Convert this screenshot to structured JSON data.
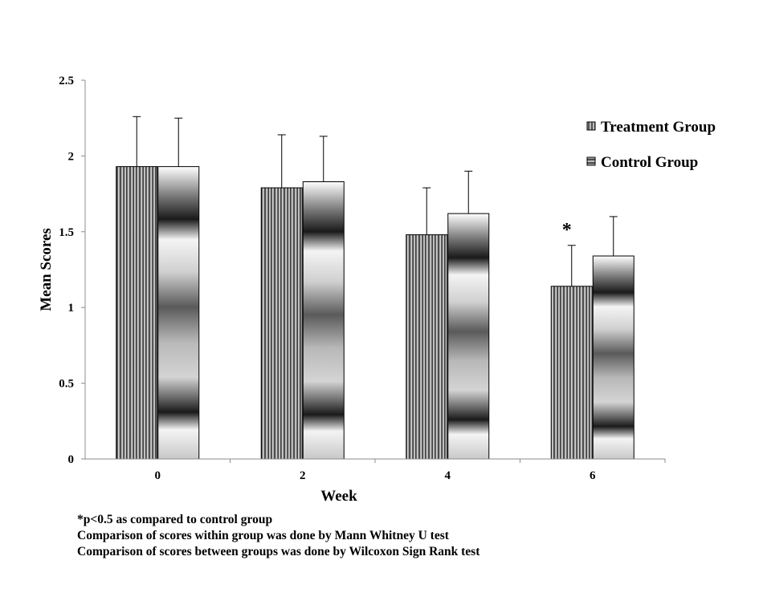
{
  "chart_data": {
    "type": "bar",
    "title": "",
    "xlabel": "Week",
    "ylabel": "Mean Scores",
    "categories": [
      "0",
      "2",
      "4",
      "6"
    ],
    "ylim": [
      0,
      2.5
    ],
    "yticks": [
      "0",
      "0.5",
      "1",
      "1.5",
      "2",
      "2.5"
    ],
    "series": [
      {
        "name": "Treatment Group",
        "values": [
          1.93,
          1.79,
          1.48,
          1.14
        ],
        "error": [
          0.33,
          0.35,
          0.31,
          0.27
        ],
        "pattern": "vertical-stripes"
      },
      {
        "name": "Control Group",
        "values": [
          1.93,
          1.83,
          1.62,
          1.34
        ],
        "error": [
          0.32,
          0.3,
          0.28,
          0.26
        ],
        "pattern": "horizontal-bands"
      }
    ],
    "annotations": [
      {
        "text": "*",
        "category": "6",
        "series": "Treatment Group"
      }
    ],
    "legend": "top-right",
    "grid": false
  },
  "notes": [
    "*p<0.5 as compared to control group",
    "Comparison of scores within group was done by Mann Whitney U test",
    "Comparison of scores between groups was done by Wilcoxon Sign Rank test"
  ]
}
